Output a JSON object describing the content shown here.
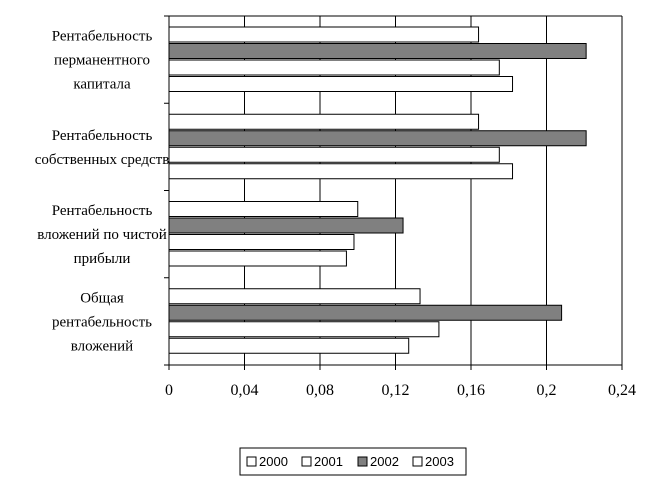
{
  "chart_data": {
    "type": "bar",
    "orientation": "horizontal",
    "categories": [
      [
        "Рентабельность",
        "перманентного",
        "капитала"
      ],
      [
        "Рентабельность",
        "собственных средств"
      ],
      [
        "Рентабельность",
        "вложений по чистой",
        "прибыли"
      ],
      [
        "Общая",
        "рентабельность",
        "вложений"
      ]
    ],
    "series": [
      {
        "name": "2000",
        "color": "#ffffff",
        "values": [
          0.164,
          0.164,
          0.1,
          0.133
        ]
      },
      {
        "name": "2002",
        "color": "#808080",
        "values": [
          0.221,
          0.221,
          0.124,
          0.208
        ]
      },
      {
        "name": "2001",
        "color": "#ffffff",
        "values": [
          0.175,
          0.175,
          0.098,
          0.143
        ]
      },
      {
        "name": "2003",
        "color": "#ffffff",
        "values": [
          0.182,
          0.182,
          0.094,
          0.127
        ]
      }
    ],
    "legend_order": [
      "2000",
      "2001",
      "2002",
      "2003"
    ],
    "xlim": [
      0,
      0.24
    ],
    "ticks": [
      {
        "value": 0,
        "label": "0"
      },
      {
        "value": 0.04,
        "label": "0,04"
      },
      {
        "value": 0.08,
        "label": "0,08"
      },
      {
        "value": 0.12,
        "label": "0,12"
      },
      {
        "value": 0.16,
        "label": "0,16"
      },
      {
        "value": 0.2,
        "label": "0,2"
      },
      {
        "value": 0.24,
        "label": "0,24"
      }
    ],
    "grid": true,
    "legend_position": "bottom"
  }
}
